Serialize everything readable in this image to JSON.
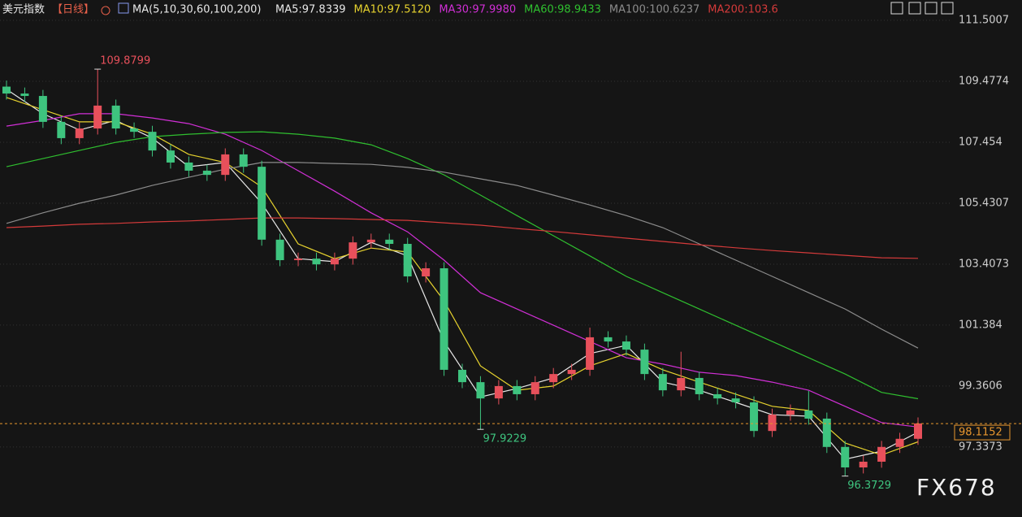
{
  "chart_data": {
    "type": "candlestick",
    "title": "美元指数",
    "period": "【日线】",
    "indicator": "MA(5,10,30,60,100,200)",
    "up_color": "#e8505b",
    "down_color": "#3ec47f",
    "candles": {
      "open": [
        109.3,
        109.07,
        108.99,
        108.13,
        107.59,
        107.91,
        108.67,
        107.91,
        107.8,
        107.18,
        106.78,
        106.51,
        106.37,
        107.05,
        106.64,
        104.22,
        103.54,
        103.59,
        103.4,
        103.59,
        104.13,
        104.22,
        104.08,
        103.0,
        103.27,
        99.9,
        99.49,
        98.95,
        99.36,
        99.09,
        99.49,
        99.76,
        99.9,
        100.98,
        100.84,
        100.57,
        99.76,
        99.22,
        99.63,
        99.09,
        98.95,
        98.82,
        97.87,
        98.41,
        98.55,
        98.28,
        97.34,
        96.66,
        96.85,
        97.34,
        97.61
      ],
      "high": [
        109.5,
        109.27,
        109.19,
        108.33,
        108.11,
        109.8799,
        108.87,
        108.11,
        108.0,
        107.38,
        106.98,
        106.71,
        107.25,
        107.25,
        106.84,
        104.42,
        103.79,
        103.79,
        103.79,
        104.33,
        104.42,
        104.42,
        104.28,
        103.47,
        103.47,
        100.1,
        99.69,
        99.56,
        99.56,
        99.69,
        99.96,
        100.1,
        101.3,
        101.18,
        101.04,
        100.77,
        99.96,
        100.5,
        99.83,
        99.29,
        99.15,
        99.02,
        98.61,
        98.75,
        99.2,
        98.48,
        97.54,
        97.05,
        97.54,
        97.81,
        98.32
      ],
      "low": [
        108.87,
        108.79,
        107.93,
        107.39,
        107.39,
        107.71,
        107.71,
        107.6,
        106.98,
        106.58,
        106.31,
        106.17,
        106.17,
        106.44,
        104.02,
        103.34,
        103.34,
        103.2,
        103.2,
        103.39,
        103.93,
        103.88,
        102.8,
        102.8,
        99.7,
        99.29,
        97.9229,
        98.75,
        98.89,
        98.89,
        99.29,
        99.56,
        99.7,
        100.64,
        100.37,
        99.56,
        99.02,
        99.02,
        98.89,
        98.75,
        98.62,
        97.67,
        97.67,
        98.21,
        98.08,
        97.14,
        96.3729,
        96.46,
        96.65,
        97.14,
        97.41
      ],
      "close": [
        109.07,
        108.99,
        108.13,
        107.59,
        107.91,
        108.67,
        107.91,
        107.8,
        107.18,
        106.78,
        106.51,
        106.37,
        107.05,
        106.64,
        104.22,
        103.54,
        103.59,
        103.4,
        103.59,
        104.13,
        104.22,
        104.08,
        103.0,
        103.27,
        99.9,
        99.49,
        98.95,
        99.36,
        99.09,
        99.49,
        99.76,
        99.9,
        100.98,
        100.84,
        100.57,
        99.76,
        99.22,
        99.63,
        99.09,
        98.95,
        98.82,
        97.87,
        98.41,
        98.55,
        98.28,
        97.34,
        96.66,
        96.85,
        97.34,
        97.61,
        98.12
      ]
    },
    "ma_index": [
      0,
      2,
      4,
      6,
      8,
      10,
      12,
      14,
      16,
      18,
      20,
      22,
      24,
      26,
      28,
      30,
      32,
      34,
      36,
      38,
      40,
      42,
      44,
      46,
      48,
      50
    ],
    "series": [
      {
        "name": "MA5",
        "legend_label": "MA5:97.8339",
        "color": "#e8e8e8",
        "values": [
          109.21,
          108.4,
          107.86,
          108.18,
          107.59,
          106.64,
          106.78,
          105.43,
          103.59,
          103.49,
          104.13,
          103.68,
          100.84,
          99.0,
          99.28,
          99.63,
          100.44,
          100.71,
          99.49,
          99.22,
          98.82,
          98.41,
          98.36,
          96.93,
          97.2,
          97.83
        ]
      },
      {
        "name": "MA10",
        "legend_label": "MA10:97.5120",
        "color": "#e6d22e",
        "values": [
          108.94,
          108.53,
          108.13,
          108.13,
          107.72,
          107.05,
          106.78,
          105.97,
          104.08,
          103.59,
          103.94,
          103.81,
          102.19,
          100.03,
          99.22,
          99.36,
          100.03,
          100.44,
          99.9,
          99.49,
          99.09,
          98.69,
          98.55,
          97.47,
          97.07,
          97.51
        ]
      },
      {
        "name": "MA30",
        "legend_label": "MA30:97.9980",
        "color": "#d12fd6",
        "values": [
          107.99,
          108.18,
          108.4,
          108.4,
          108.26,
          108.07,
          107.72,
          107.18,
          106.51,
          105.83,
          105.11,
          104.48,
          103.54,
          102.46,
          101.92,
          101.38,
          100.84,
          100.3,
          100.09,
          99.82,
          99.71,
          99.49,
          99.22,
          98.69,
          98.15,
          98.0
        ]
      },
      {
        "name": "MA60",
        "legend_label": "MA60:98.9433",
        "color": "#2fbf2f",
        "values": [
          106.64,
          106.91,
          107.18,
          107.45,
          107.64,
          107.72,
          107.78,
          107.8,
          107.72,
          107.59,
          107.37,
          106.91,
          106.37,
          105.7,
          105.02,
          104.35,
          103.68,
          103.0,
          102.46,
          101.92,
          101.38,
          100.84,
          100.3,
          99.76,
          99.15,
          98.94
        ]
      },
      {
        "name": "MA100",
        "legend_label": "MA100:100.6237",
        "color": "#8c8c8c",
        "values": [
          104.76,
          105.11,
          105.43,
          105.7,
          106.02,
          106.29,
          106.56,
          106.78,
          106.78,
          106.75,
          106.72,
          106.62,
          106.46,
          106.24,
          106.02,
          105.7,
          105.37,
          105.02,
          104.62,
          104.08,
          103.54,
          103.0,
          102.46,
          101.92,
          101.25,
          100.62
        ]
      },
      {
        "name": "MA200",
        "legend_label": "MA200:103.6",
        "color": "#d43a3a",
        "values": [
          104.62,
          104.67,
          104.73,
          104.76,
          104.81,
          104.84,
          104.89,
          104.94,
          104.94,
          104.92,
          104.89,
          104.86,
          104.78,
          104.7,
          104.59,
          104.49,
          104.38,
          104.27,
          104.16,
          104.05,
          103.95,
          103.86,
          103.78,
          103.7,
          103.62,
          103.6
        ]
      }
    ],
    "last_price": 98.1152,
    "annotations": [
      {
        "label": "109.8799",
        "at": "chart_data.candles.high.5",
        "color": "#e8505b"
      },
      {
        "label": "97.9229",
        "at": "chart_data.candles.low.26",
        "color": "#3ec47f"
      },
      {
        "label": "96.3729",
        "at": "chart_data.candles.low.46",
        "color": "#3ec47f"
      }
    ],
    "ylim": [
      95.5,
      112.175
    ],
    "yticks": [
      111.5007,
      109.4774,
      107.454,
      {
        "value": 105.4307,
        "label": "105.4307"
      },
      103.4073,
      101.384,
      99.3606,
      97.3373
    ],
    "grid": true,
    "watermark": "FX678"
  }
}
